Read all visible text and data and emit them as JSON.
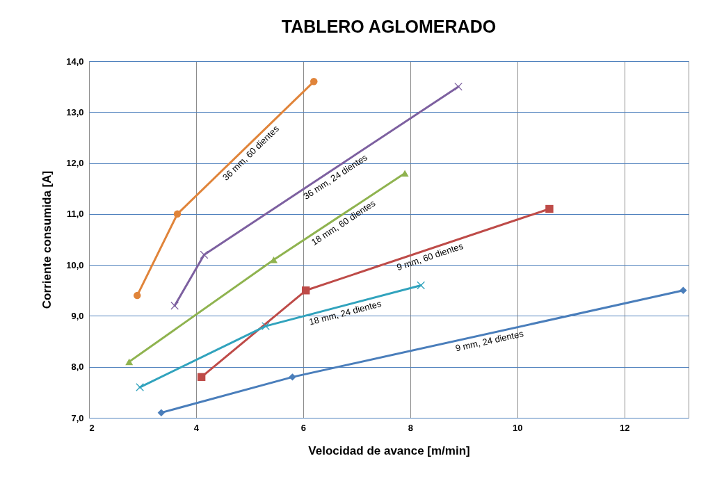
{
  "chart_data": {
    "type": "line",
    "title": "TABLERO AGLOMERADO",
    "xlabel": "Velocidad de avance [m/min]",
    "ylabel": "Corriente consumida [A]",
    "xlim": [
      2,
      13.2
    ],
    "xticks": [
      2,
      4,
      6,
      8,
      10,
      12
    ],
    "ylim": [
      7,
      14
    ],
    "yticks": [
      {
        "value": 7,
        "label": "7,0"
      },
      {
        "value": 8,
        "label": "8,0"
      },
      {
        "value": 9,
        "label": "9,0"
      },
      {
        "value": 10,
        "label": "10,0"
      },
      {
        "value": 11,
        "label": "11,0"
      },
      {
        "value": 12,
        "label": "12,0"
      },
      {
        "value": 13,
        "label": "13,0"
      },
      {
        "value": 14,
        "label": "14,0"
      }
    ],
    "grid": true,
    "series": [
      {
        "name": "9 mm, 24 dientes",
        "color": "#4a7ebb",
        "marker": "diamond",
        "x": [
          3.35,
          5.8,
          13.1
        ],
        "values": [
          7.1,
          7.8,
          9.5
        ]
      },
      {
        "name": "9 mm, 60 dientes",
        "color": "#be4b48",
        "marker": "square",
        "x": [
          4.1,
          6.05,
          10.6
        ],
        "values": [
          7.8,
          9.5,
          11.1
        ]
      },
      {
        "name": "18 mm, 24 dientes",
        "color": "#31a3bd",
        "marker": "cross",
        "x": [
          2.95,
          5.3,
          8.2
        ],
        "values": [
          7.6,
          8.8,
          9.6
        ]
      },
      {
        "name": "18 mm, 60 dientes",
        "color": "#8fb34f",
        "marker": "triangle",
        "x": [
          2.75,
          5.45,
          7.9
        ],
        "values": [
          8.1,
          10.1,
          11.8
        ]
      },
      {
        "name": "36 mm, 24 dientes",
        "color": "#7d60a0",
        "marker": "cross",
        "x": [
          3.6,
          4.15,
          8.9
        ],
        "values": [
          9.2,
          10.2,
          13.5
        ]
      },
      {
        "name": "36 mm, 60 dientes",
        "color": "#e0843a",
        "marker": "circle",
        "x": [
          2.9,
          3.65,
          6.2
        ],
        "values": [
          9.4,
          11.0,
          13.6
        ]
      }
    ]
  }
}
